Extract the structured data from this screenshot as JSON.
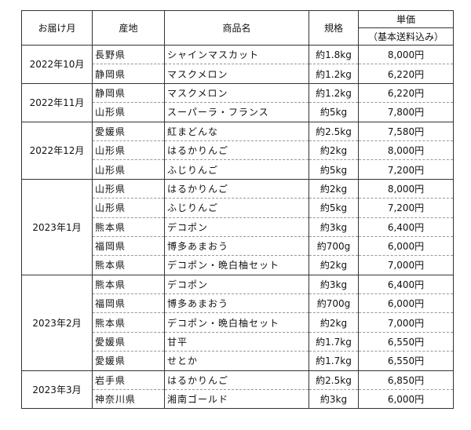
{
  "header": {
    "month": "お届け月",
    "origin": "産地",
    "product": "商品名",
    "size": "規格",
    "price": "単価",
    "price_note": "（基本送料込み）"
  },
  "groups": [
    {
      "month": "2022年10月",
      "rows": [
        {
          "origin": "長野県",
          "product": "シャインマスカット",
          "size": "約1.8kg",
          "price": "8,000円"
        },
        {
          "origin": "静岡県",
          "product": "マスクメロン",
          "size": "約1.2kg",
          "price": "6,220円"
        }
      ]
    },
    {
      "month": "2022年11月",
      "rows": [
        {
          "origin": "静岡県",
          "product": "マスクメロン",
          "size": "約1.2kg",
          "price": "6,220円"
        },
        {
          "origin": "山形県",
          "product": "スーパーラ・フランス",
          "size": "約5kg",
          "price": "7,800円"
        }
      ]
    },
    {
      "month": "2022年12月",
      "rows": [
        {
          "origin": "愛媛県",
          "product": "紅まどんな",
          "size": "約2.5kg",
          "price": "7,580円"
        },
        {
          "origin": "山形県",
          "product": "はるかりんご",
          "size": "約2kg",
          "price": "8,000円"
        },
        {
          "origin": "山形県",
          "product": "ふじりんご",
          "size": "約5kg",
          "price": "7,200円"
        }
      ]
    },
    {
      "month": "2023年1月",
      "rows": [
        {
          "origin": "山形県",
          "product": "はるかりんご",
          "size": "約2kg",
          "price": "8,000円"
        },
        {
          "origin": "山形県",
          "product": "ふじりんご",
          "size": "約5kg",
          "price": "7,200円"
        },
        {
          "origin": "熊本県",
          "product": "デコポン",
          "size": "約3kg",
          "price": "6,400円"
        },
        {
          "origin": "福岡県",
          "product": "博多あまおう",
          "size": "約700g",
          "price": "6,000円"
        },
        {
          "origin": "熊本県",
          "product": "デコポン・晩白柚セット",
          "size": "約2kg",
          "price": "7,000円"
        }
      ]
    },
    {
      "month": "2023年2月",
      "rows": [
        {
          "origin": "熊本県",
          "product": "デコポン",
          "size": "約3kg",
          "price": "6,400円"
        },
        {
          "origin": "福岡県",
          "product": "博多あまおう",
          "size": "約700g",
          "price": "6,000円"
        },
        {
          "origin": "熊本県",
          "product": "デコポン・晩白柚セット",
          "size": "約2kg",
          "price": "7,000円"
        },
        {
          "origin": "愛媛県",
          "product": "甘平",
          "size": "約1.7kg",
          "price": "6,550円"
        },
        {
          "origin": "愛媛県",
          "product": "せとか",
          "size": "約1.7kg",
          "price": "6,550円"
        }
      ]
    },
    {
      "month": "2023年3月",
      "rows": [
        {
          "origin": "岩手県",
          "product": "はるかりんご",
          "size": "約2.5kg",
          "price": "6,850円"
        },
        {
          "origin": "神奈川県",
          "product": "湘南ゴールド",
          "size": "約3kg",
          "price": "6,000円"
        }
      ]
    }
  ]
}
